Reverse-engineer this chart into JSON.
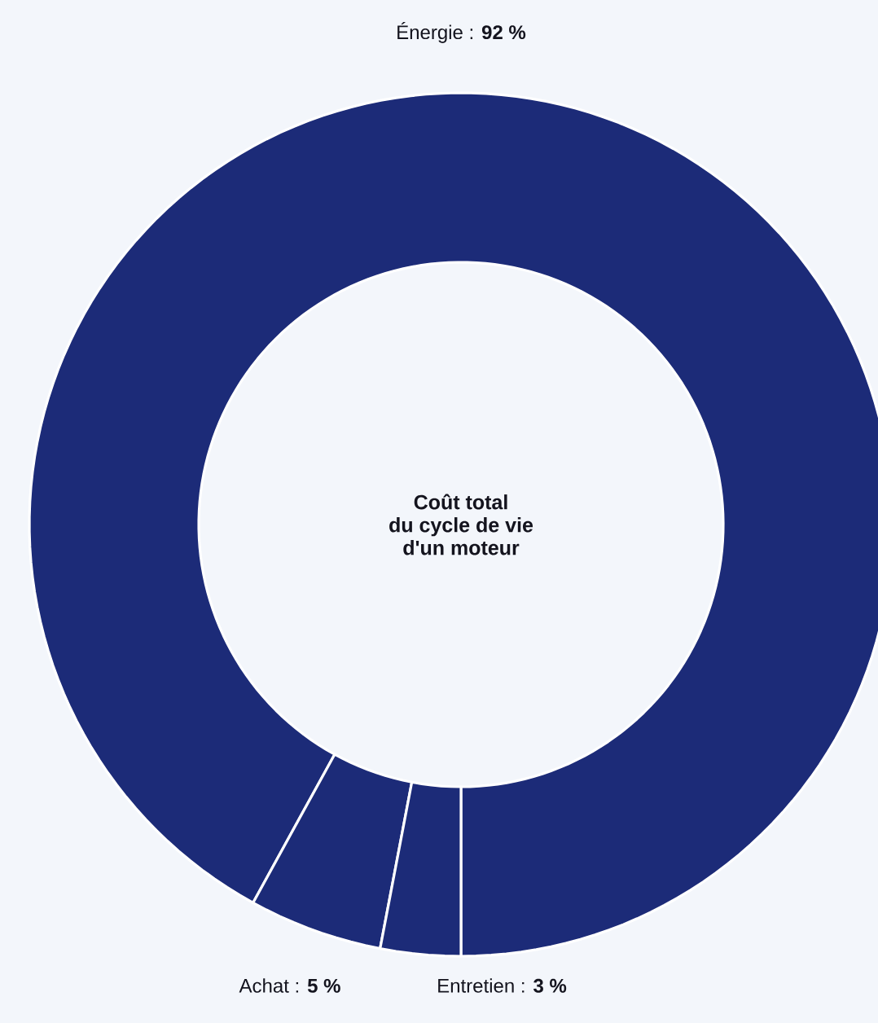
{
  "chart_data": {
    "type": "donut",
    "title": "Coût total du cycle de vie d'un moteur",
    "categories": [
      "Énergie : **92 %**",
      "Achat : **5 %**",
      "Entretien : **3 %**"
    ],
    "values": [
      92,
      5,
      3
    ],
    "colors": [
      "#1c2b78",
      "#1c2b78",
      "#1c2b78"
    ]
  }
}
